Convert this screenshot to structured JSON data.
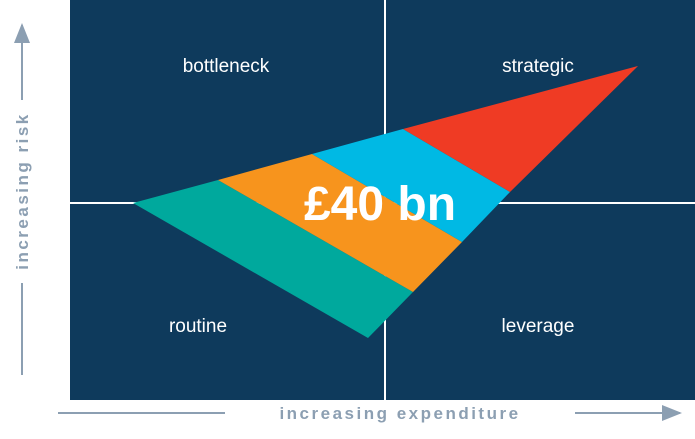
{
  "quadrants": {
    "top_left": "bottleneck",
    "top_right": "strategic",
    "bottom_left": "routine",
    "bottom_right": "leverage"
  },
  "center_label": "£40 bn",
  "axes": {
    "y_label": "increasing risk",
    "x_label": "increasing expenditure"
  }
}
